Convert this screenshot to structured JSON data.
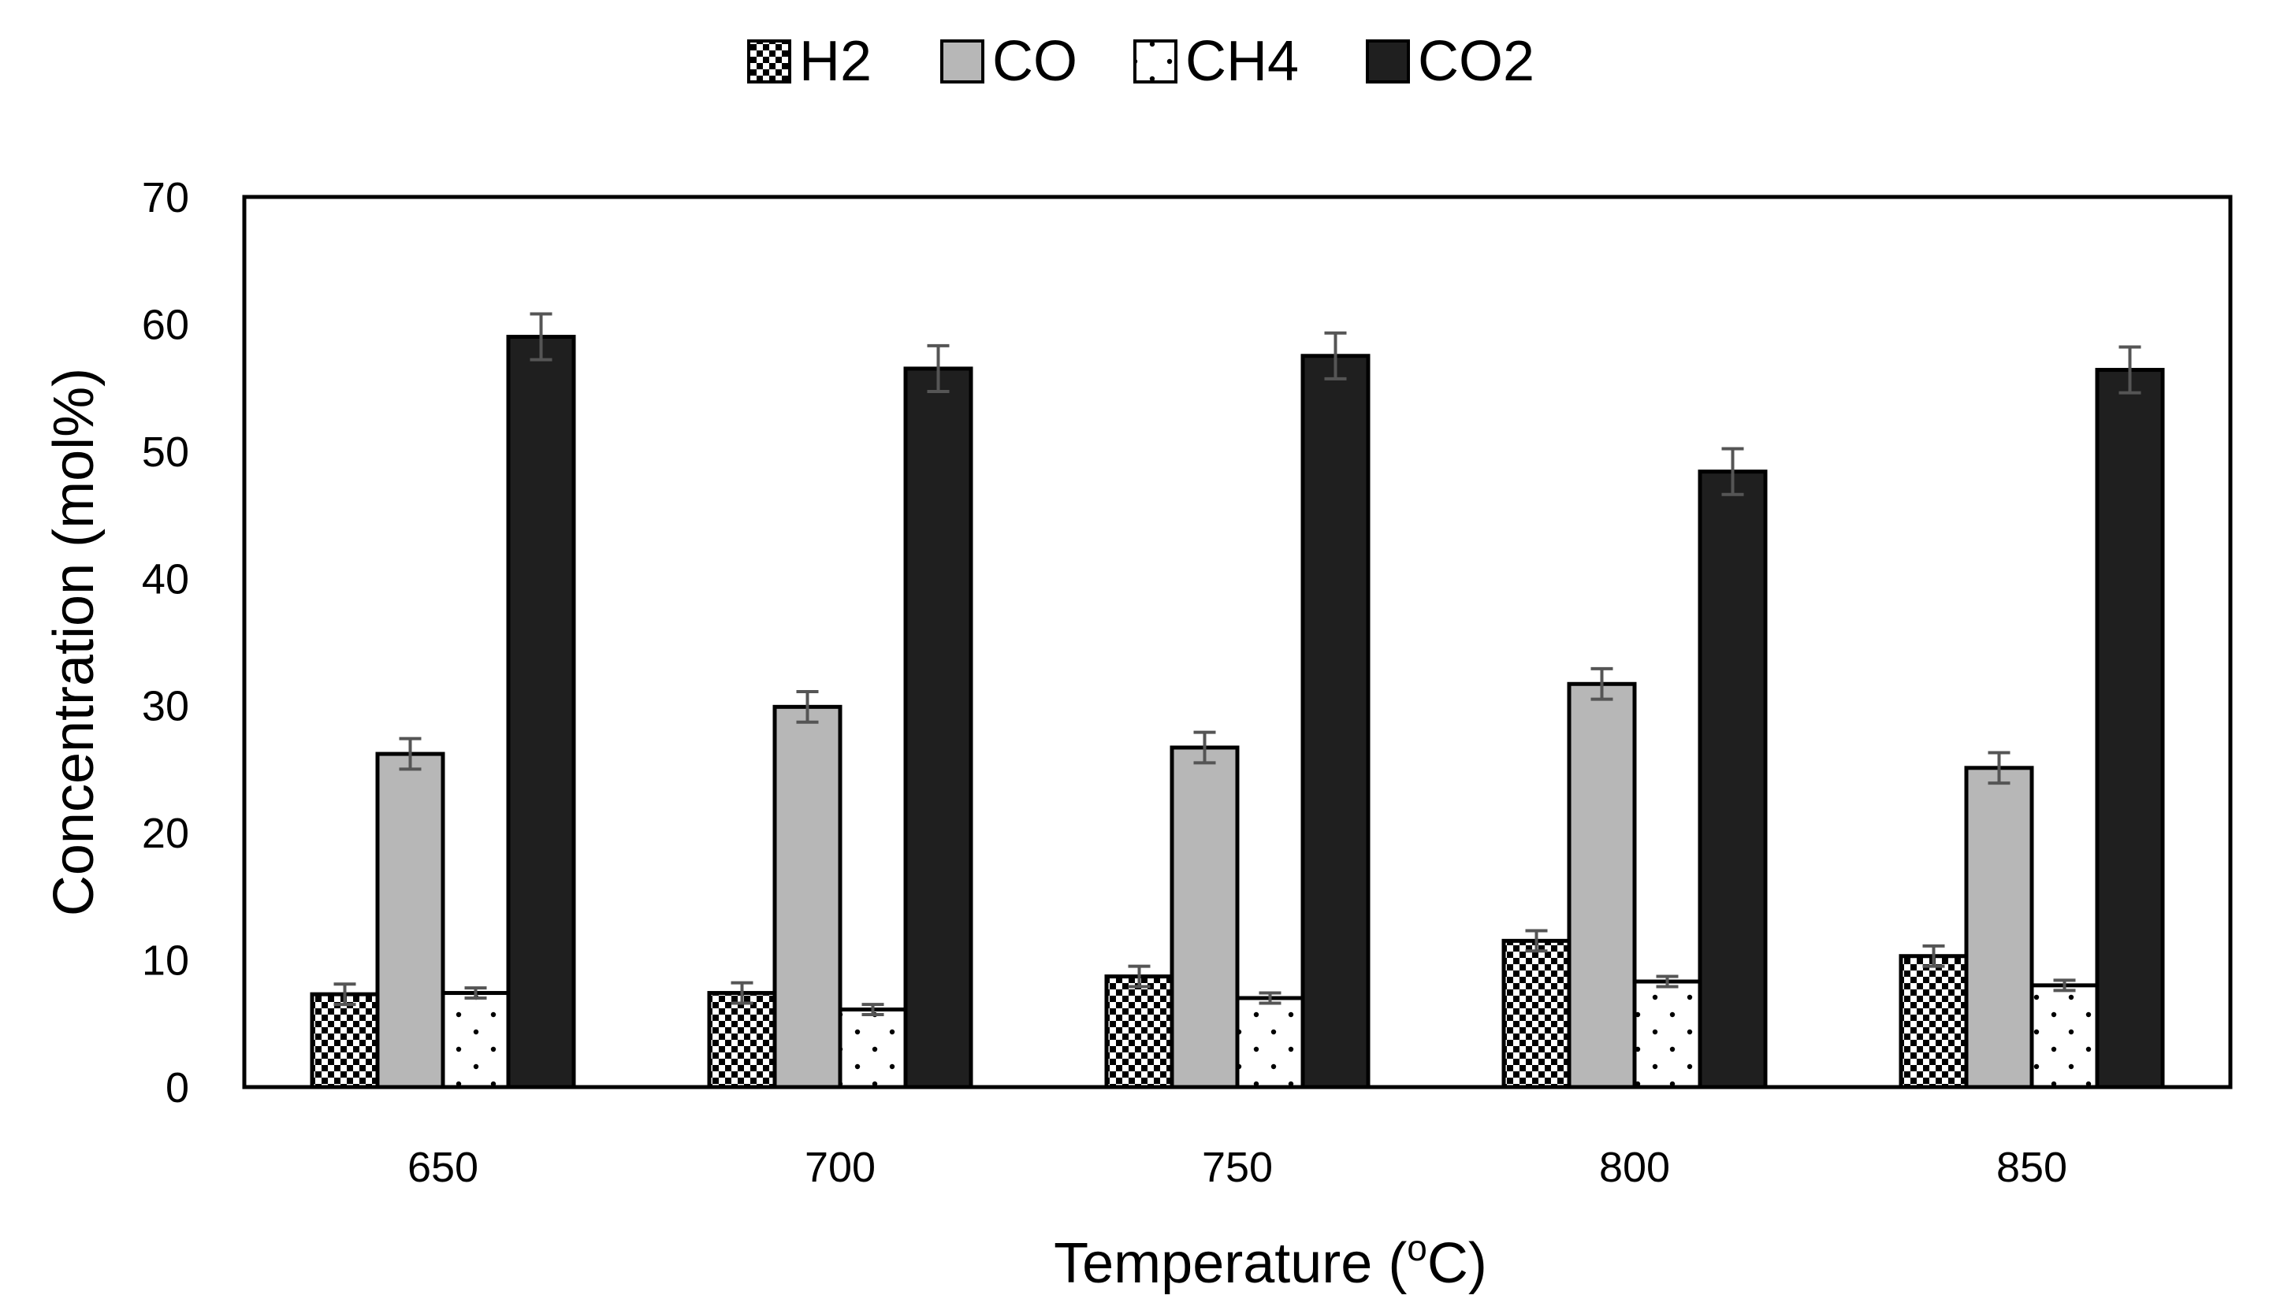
{
  "chart_data": {
    "type": "bar",
    "title": "",
    "xlabel": "Temperature (°C)",
    "xlabel_main": "Temperature (",
    "xlabel_sup": "o",
    "xlabel_end": "C)",
    "ylabel": "Concentration (mol%)",
    "ylim": [
      0,
      70
    ],
    "yticks": [
      0,
      10,
      20,
      30,
      40,
      50,
      60,
      70
    ],
    "grid": false,
    "legend_position": "top-center",
    "categories": [
      "650",
      "700",
      "750",
      "800",
      "850"
    ],
    "series": [
      {
        "name": "H2",
        "fill": "checker",
        "values": [
          7.3,
          7.4,
          8.7,
          11.5,
          10.3
        ],
        "errors": [
          0.8,
          0.8,
          0.8,
          0.8,
          0.8
        ]
      },
      {
        "name": "CO",
        "fill": "#b7b7b7",
        "values": [
          26.2,
          29.9,
          26.7,
          31.7,
          25.1
        ],
        "errors": [
          1.2,
          1.2,
          1.2,
          1.2,
          1.2
        ]
      },
      {
        "name": "CH4",
        "fill": "dots",
        "values": [
          7.4,
          6.1,
          7.0,
          8.3,
          8.0
        ],
        "errors": [
          0.4,
          0.4,
          0.4,
          0.4,
          0.4
        ]
      },
      {
        "name": "CO2",
        "fill": "#1f1f1f",
        "values": [
          59.0,
          56.5,
          57.5,
          48.4,
          56.4
        ],
        "errors": [
          1.8,
          1.8,
          1.8,
          1.8,
          1.8
        ]
      }
    ]
  },
  "colors": {
    "bar_outline": "#000000",
    "error_bar": "#555555",
    "checker_dark": "#000000",
    "checker_light": "#ffffff"
  }
}
